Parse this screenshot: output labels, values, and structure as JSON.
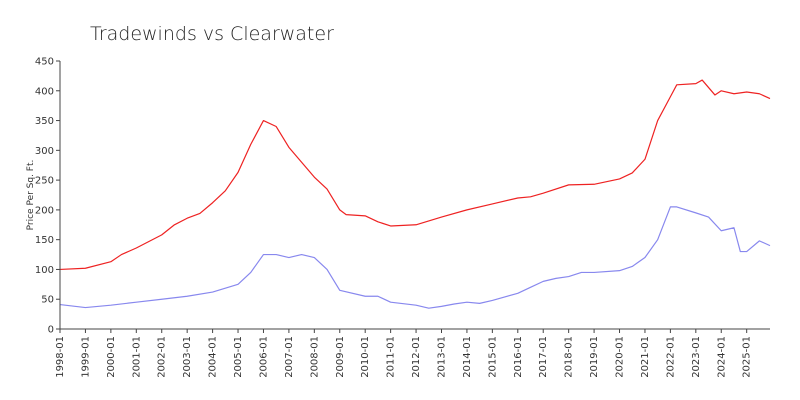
{
  "chart_data": {
    "type": "line",
    "title": "Tradewinds vs Clearwater",
    "xlabel": "",
    "ylabel": "Price Per Sq. Ft.",
    "ylim": [
      0,
      450
    ],
    "yticks": [
      0,
      50,
      100,
      150,
      200,
      250,
      300,
      350,
      400,
      450
    ],
    "xlim": [
      "1998-01",
      "2025-12"
    ],
    "xticks": [
      "1998-01",
      "1999-01",
      "2000-01",
      "2001-01",
      "2002-01",
      "2003-01",
      "2004-01",
      "2005-01",
      "2006-01",
      "2007-01",
      "2008-01",
      "2009-01",
      "2010-01",
      "2011-01",
      "2012-01",
      "2013-01",
      "2014-01",
      "2015-01",
      "2016-01",
      "2017-01",
      "2018-01",
      "2019-01",
      "2020-01",
      "2021-01",
      "2022-01",
      "2023-01",
      "2024-01",
      "2025-01"
    ],
    "grid": false,
    "legend": "none",
    "series": [
      {
        "color": "#ee2222",
        "points": [
          [
            "1998-01",
            100
          ],
          [
            "1999-01",
            102
          ],
          [
            "2000-01",
            113
          ],
          [
            "2000-06",
            125
          ],
          [
            "2001-01",
            136
          ],
          [
            "2002-01",
            158
          ],
          [
            "2002-07",
            175
          ],
          [
            "2003-01",
            186
          ],
          [
            "2003-07",
            194
          ],
          [
            "2004-01",
            212
          ],
          [
            "2004-07",
            232
          ],
          [
            "2005-01",
            263
          ],
          [
            "2005-07",
            310
          ],
          [
            "2006-01",
            350
          ],
          [
            "2006-07",
            340
          ],
          [
            "2007-01",
            305
          ],
          [
            "2007-07",
            280
          ],
          [
            "2008-01",
            255
          ],
          [
            "2008-07",
            235
          ],
          [
            "2009-01",
            200
          ],
          [
            "2009-04",
            192
          ],
          [
            "2010-01",
            190
          ],
          [
            "2010-07",
            180
          ],
          [
            "2011-01",
            173
          ],
          [
            "2012-01",
            175
          ],
          [
            "2013-01",
            188
          ],
          [
            "2014-01",
            200
          ],
          [
            "2015-01",
            210
          ],
          [
            "2016-01",
            220
          ],
          [
            "2016-07",
            222
          ],
          [
            "2017-01",
            228
          ],
          [
            "2018-01",
            242
          ],
          [
            "2019-01",
            243
          ],
          [
            "2020-01",
            252
          ],
          [
            "2020-07",
            262
          ],
          [
            "2021-01",
            285
          ],
          [
            "2021-07",
            350
          ],
          [
            "2022-01",
            390
          ],
          [
            "2022-04",
            410
          ],
          [
            "2023-01",
            412
          ],
          [
            "2023-04",
            418
          ],
          [
            "2023-10",
            393
          ],
          [
            "2024-01",
            400
          ],
          [
            "2024-07",
            395
          ],
          [
            "2025-01",
            398
          ],
          [
            "2025-07",
            395
          ],
          [
            "2025-12",
            387
          ]
        ]
      },
      {
        "color": "#8888ee",
        "points": [
          [
            "1998-01",
            41
          ],
          [
            "1999-01",
            36
          ],
          [
            "2000-01",
            40
          ],
          [
            "2001-01",
            45
          ],
          [
            "2002-01",
            50
          ],
          [
            "2003-01",
            55
          ],
          [
            "2004-01",
            62
          ],
          [
            "2005-01",
            75
          ],
          [
            "2005-07",
            95
          ],
          [
            "2006-01",
            125
          ],
          [
            "2006-07",
            125
          ],
          [
            "2007-01",
            120
          ],
          [
            "2007-07",
            125
          ],
          [
            "2008-01",
            120
          ],
          [
            "2008-07",
            100
          ],
          [
            "2009-01",
            65
          ],
          [
            "2010-01",
            55
          ],
          [
            "2010-07",
            55
          ],
          [
            "2011-01",
            45
          ],
          [
            "2012-01",
            40
          ],
          [
            "2012-07",
            35
          ],
          [
            "2013-01",
            38
          ],
          [
            "2013-07",
            42
          ],
          [
            "2014-01",
            45
          ],
          [
            "2014-07",
            43
          ],
          [
            "2015-01",
            48
          ],
          [
            "2016-01",
            60
          ],
          [
            "2016-07",
            70
          ],
          [
            "2017-01",
            80
          ],
          [
            "2017-07",
            85
          ],
          [
            "2018-01",
            88
          ],
          [
            "2018-07",
            95
          ],
          [
            "2019-01",
            95
          ],
          [
            "2020-01",
            98
          ],
          [
            "2020-07",
            105
          ],
          [
            "2021-01",
            120
          ],
          [
            "2021-07",
            150
          ],
          [
            "2022-01",
            205
          ],
          [
            "2022-04",
            205
          ],
          [
            "2023-01",
            195
          ],
          [
            "2023-07",
            188
          ],
          [
            "2024-01",
            165
          ],
          [
            "2024-07",
            170
          ],
          [
            "2024-10",
            130
          ],
          [
            "2025-01",
            130
          ],
          [
            "2025-07",
            148
          ],
          [
            "2025-12",
            140
          ]
        ]
      }
    ]
  }
}
